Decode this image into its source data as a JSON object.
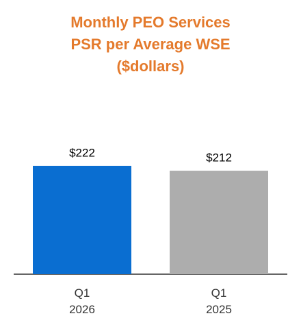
{
  "chart_data": {
    "type": "bar",
    "title": [
      "Monthly PEO Services",
      "PSR per Average WSE",
      "($dollars)"
    ],
    "title_color": "#e47a2c",
    "categories": [
      "Q1 2026",
      "Q1 2025"
    ],
    "values": [
      222,
      212
    ],
    "value_labels": [
      "$222",
      "$212"
    ],
    "colors": [
      "#0a6ed1",
      "#adadad"
    ],
    "ylim": [
      0,
      250
    ]
  }
}
